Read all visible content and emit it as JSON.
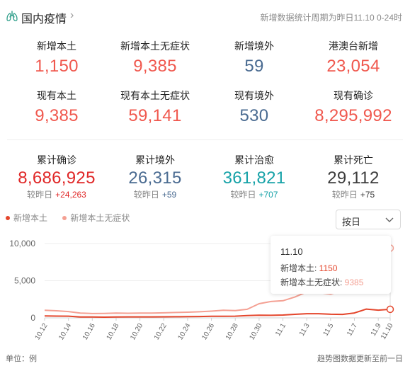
{
  "header": {
    "title": "国内疫情",
    "note": "新增数据统计周期为昨日11.10 0-24时"
  },
  "stats_row1": [
    {
      "label": "新增本土",
      "value": "1,150",
      "color": "#f0584e"
    },
    {
      "label": "新增本土无症状",
      "value": "9,385",
      "color": "#f0584e"
    },
    {
      "label": "新增境外",
      "value": "59",
      "color": "#4a6b91"
    },
    {
      "label": "港澳台新增",
      "value": "23,054",
      "color": "#f0584e"
    }
  ],
  "stats_row2": [
    {
      "label": "现有本土",
      "value": "9,385",
      "color": "#f0584e"
    },
    {
      "label": "现有本土无症状",
      "value": "59,141",
      "color": "#f0584e"
    },
    {
      "label": "现有境外",
      "value": "530",
      "color": "#4a6b91"
    },
    {
      "label": "现有确诊",
      "value": "8,295,992",
      "color": "#f0584e"
    }
  ],
  "stats_row3": [
    {
      "label": "累计确诊",
      "value": "8,686,925",
      "diff_label": "较昨日",
      "diff": "+24,263",
      "color": "#e02727",
      "diff_color": "#e02727"
    },
    {
      "label": "累计境外",
      "value": "26,315",
      "diff_label": "较昨日",
      "diff": "+59",
      "color": "#4a6b91",
      "diff_color": "#4a6b91"
    },
    {
      "label": "累计治愈",
      "value": "361,821",
      "diff_label": "较昨日",
      "diff": "+707",
      "color": "#17a2a8",
      "diff_color": "#17a2a8"
    },
    {
      "label": "累计死亡",
      "value": "29,112",
      "diff_label": "较昨日",
      "diff": "+75",
      "color": "#3d3d3d",
      "diff_color": "#3d3d3d"
    }
  ],
  "legend": [
    {
      "name": "新增本土",
      "color": "#e4462c"
    },
    {
      "name": "新增本土无症状",
      "color": "#f4a093"
    }
  ],
  "period_select": {
    "value": "按日"
  },
  "tooltip": {
    "date": "11.10",
    "row1_label": "新增本土: ",
    "row1_value": "1150",
    "row2_label": "新增本土无症状: ",
    "row2_value": "9385"
  },
  "footer": {
    "unit": "单位：例",
    "note": "趋势图数据更新至前一日"
  },
  "chart_data": {
    "type": "line",
    "x": [
      "10.12",
      "10.13",
      "10.14",
      "10.15",
      "10.16",
      "10.17",
      "10.18",
      "10.19",
      "10.20",
      "10.21",
      "10.22",
      "10.23",
      "10.24",
      "10.25",
      "10.26",
      "10.27",
      "10.28",
      "10.29",
      "10.30",
      "10.31",
      "11.1",
      "11.2",
      "11.3",
      "11.4",
      "11.5",
      "11.6",
      "11.7",
      "11.8",
      "11.9",
      "11.10"
    ],
    "x_ticks": [
      "10.12",
      "10.14",
      "10.16",
      "10.18",
      "10.20",
      "10.22",
      "10.24",
      "10.26",
      "10.28",
      "10.30",
      "11.1",
      "11.3",
      "11.5",
      "11.7",
      "11.9",
      "11.10"
    ],
    "ylim": [
      0,
      10000
    ],
    "y_ticks": [
      "0",
      "5,000",
      "10,000"
    ],
    "series": [
      {
        "name": "新增本土",
        "color": "#e4462c",
        "values": [
          260,
          240,
          230,
          120,
          110,
          100,
          120,
          130,
          130,
          130,
          140,
          150,
          160,
          180,
          210,
          220,
          230,
          300,
          350,
          340,
          380,
          480,
          560,
          560,
          490,
          470,
          660,
          1180,
          1040,
          1150
        ]
      },
      {
        "name": "新增本土无症状",
        "color": "#f4a093",
        "values": [
          1020,
          950,
          850,
          650,
          580,
          600,
          650,
          620,
          640,
          650,
          680,
          720,
          760,
          820,
          900,
          1020,
          980,
          1150,
          1900,
          2200,
          2300,
          2800,
          3500,
          3400,
          3200,
          3700,
          4800,
          6600,
          7500,
          9385
        ]
      }
    ],
    "highlight_index": 29
  }
}
